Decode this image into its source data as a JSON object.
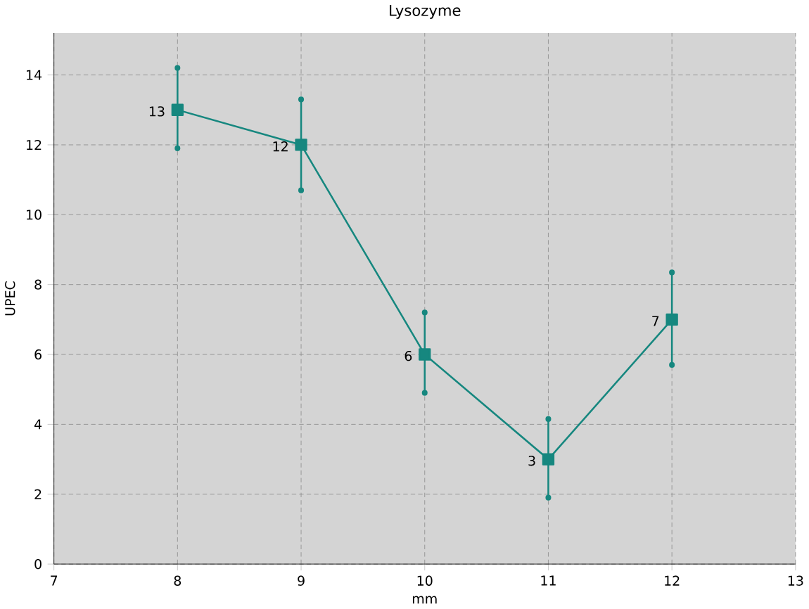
{
  "chart_data": {
    "type": "line",
    "title": "Lysozyme",
    "xlabel": "mm",
    "ylabel": "UPEC",
    "x": [
      8,
      9,
      10,
      11,
      12
    ],
    "series": [
      {
        "color": "#16877f",
        "values": [
          13,
          12,
          6,
          3,
          7
        ],
        "errors": [
          [
            11.9,
            14.2
          ],
          [
            10.7,
            13.3
          ],
          [
            4.9,
            7.2
          ],
          [
            1.9,
            4.15
          ],
          [
            5.7,
            8.35
          ]
        ]
      }
    ],
    "xlim": [
      7,
      13
    ],
    "xticks": [
      7,
      8,
      9,
      10,
      11,
      12,
      13
    ],
    "ylim": [
      0,
      15.2
    ],
    "yticks": [
      0,
      2,
      4,
      6,
      8,
      10,
      12,
      14
    ],
    "grid": true,
    "marker": "square",
    "line_style": "solid",
    "data_labels": true
  }
}
